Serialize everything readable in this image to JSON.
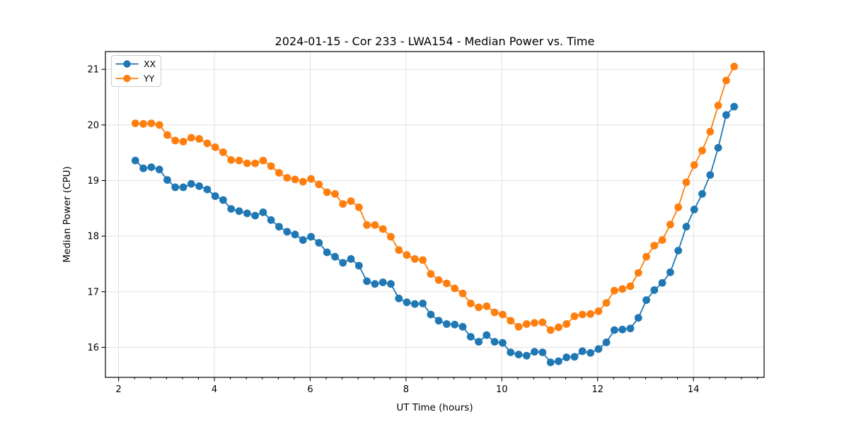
{
  "chart_data": {
    "type": "line",
    "title": "2024-01-15 - Cor 233 - LWA154 - Median Power vs. Time",
    "xlabel": "UT Time (hours)",
    "ylabel": "Median Power (CPU)",
    "xlim": [
      1.725,
      15.475
    ],
    "ylim": [
      15.46,
      21.32
    ],
    "xticks": [
      2,
      4,
      6,
      8,
      10,
      12,
      14
    ],
    "yticks": [
      16,
      17,
      18,
      19,
      20,
      21
    ],
    "x_minor_step": 0.3333,
    "y_minor_step": 0,
    "grid": true,
    "grid_color": "#e0e0e0",
    "spine_color": "#000000",
    "background": "#ffffff",
    "legend_position": "upper left",
    "x": [
      2.35,
      2.517,
      2.683,
      2.85,
      3.017,
      3.183,
      3.35,
      3.517,
      3.683,
      3.85,
      4.017,
      4.183,
      4.35,
      4.517,
      4.683,
      4.85,
      5.017,
      5.183,
      5.35,
      5.517,
      5.683,
      5.85,
      6.017,
      6.183,
      6.35,
      6.517,
      6.683,
      6.85,
      7.017,
      7.183,
      7.35,
      7.517,
      7.683,
      7.85,
      8.017,
      8.183,
      8.35,
      8.517,
      8.683,
      8.85,
      9.017,
      9.183,
      9.35,
      9.517,
      9.683,
      9.85,
      10.017,
      10.183,
      10.35,
      10.517,
      10.683,
      10.85,
      11.017,
      11.183,
      11.35,
      11.517,
      11.683,
      11.85,
      12.017,
      12.183,
      12.35,
      12.517,
      12.683,
      12.85,
      13.017,
      13.183,
      13.35,
      13.517,
      13.683,
      13.85,
      14.017,
      14.183,
      14.35,
      14.517,
      14.683,
      14.85
    ],
    "series": [
      {
        "name": "XX",
        "color": "#1f77b4",
        "values": [
          19.36,
          19.22,
          19.24,
          19.2,
          19.01,
          18.88,
          18.88,
          18.94,
          18.9,
          18.84,
          18.72,
          18.65,
          18.49,
          18.45,
          18.41,
          18.37,
          18.43,
          18.29,
          18.17,
          18.08,
          18.03,
          17.93,
          17.99,
          17.88,
          17.71,
          17.63,
          17.52,
          17.59,
          17.47,
          17.19,
          17.14,
          17.17,
          17.14,
          16.88,
          16.81,
          16.78,
          16.79,
          16.59,
          16.48,
          16.42,
          16.41,
          16.37,
          16.19,
          16.1,
          16.22,
          16.1,
          16.08,
          15.91,
          15.87,
          15.85,
          15.92,
          15.91,
          15.73,
          15.75,
          15.82,
          15.83,
          15.93,
          15.9,
          15.97,
          16.09,
          16.31,
          16.32,
          16.34,
          16.53,
          16.85,
          17.03,
          17.16,
          17.35,
          17.74,
          18.17,
          18.48,
          18.76,
          19.1,
          19.59,
          20.18,
          20.33
        ]
      },
      {
        "name": "YY",
        "color": "#ff7f0e",
        "values": [
          20.03,
          20.02,
          20.03,
          20.0,
          19.82,
          19.72,
          19.7,
          19.77,
          19.75,
          19.67,
          19.6,
          19.51,
          19.37,
          19.36,
          19.31,
          19.31,
          19.36,
          19.26,
          19.14,
          19.05,
          19.02,
          18.98,
          19.03,
          18.93,
          18.79,
          18.76,
          18.58,
          18.63,
          18.52,
          18.2,
          18.2,
          18.13,
          17.99,
          17.75,
          17.66,
          17.59,
          17.57,
          17.32,
          17.21,
          17.15,
          17.06,
          16.97,
          16.79,
          16.72,
          16.74,
          16.63,
          16.59,
          16.48,
          16.37,
          16.42,
          16.44,
          16.45,
          16.31,
          16.36,
          16.42,
          16.56,
          16.59,
          16.6,
          16.65,
          16.8,
          17.02,
          17.05,
          17.1,
          17.34,
          17.63,
          17.83,
          17.93,
          18.21,
          18.52,
          18.97,
          19.28,
          19.54,
          19.88,
          20.35,
          20.8,
          21.05
        ]
      }
    ]
  }
}
